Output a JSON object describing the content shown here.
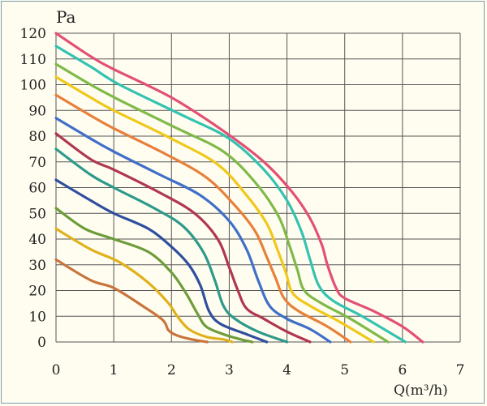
{
  "chart_data": {
    "type": "line",
    "ylabel": "Pa",
    "xlabel": "Q(m³/h)",
    "xlim": [
      0,
      7
    ],
    "ylim": [
      0,
      120
    ],
    "x_ticks": [
      "0",
      "1",
      "2",
      "3",
      "4",
      "5",
      "6",
      "7"
    ],
    "y_ticks": [
      "0",
      "10",
      "20",
      "30",
      "40",
      "50",
      "60",
      "70",
      "80",
      "90",
      "100",
      "110",
      "120"
    ],
    "grid": true,
    "series": [
      {
        "color": "#c8743a",
        "points": [
          [
            0,
            32
          ],
          [
            0.6,
            24
          ],
          [
            1.0,
            21
          ],
          [
            1.5,
            14
          ],
          [
            1.85,
            8.5
          ],
          [
            1.95,
            4.5
          ],
          [
            2.1,
            2.5
          ],
          [
            2.35,
            1
          ],
          [
            2.62,
            0
          ]
        ]
      },
      {
        "color": "#e0b11c",
        "points": [
          [
            0,
            44
          ],
          [
            0.6,
            36
          ],
          [
            1.1,
            31
          ],
          [
            1.6,
            23
          ],
          [
            1.95,
            15
          ],
          [
            2.1,
            10
          ],
          [
            2.3,
            5
          ],
          [
            2.6,
            2
          ],
          [
            2.9,
            1
          ],
          [
            3.05,
            0
          ]
        ]
      },
      {
        "color": "#6e9c3a",
        "points": [
          [
            0,
            52
          ],
          [
            0.5,
            44
          ],
          [
            1.0,
            40
          ],
          [
            1.6,
            35
          ],
          [
            2.0,
            27
          ],
          [
            2.25,
            19
          ],
          [
            2.45,
            11
          ],
          [
            2.6,
            6
          ],
          [
            2.9,
            3
          ],
          [
            3.2,
            1
          ],
          [
            3.4,
            0
          ]
        ]
      },
      {
        "color": "#2f4f9e",
        "points": [
          [
            0,
            63
          ],
          [
            0.6,
            55
          ],
          [
            1.0,
            50
          ],
          [
            1.6,
            44
          ],
          [
            2.0,
            37
          ],
          [
            2.3,
            30
          ],
          [
            2.5,
            22
          ],
          [
            2.65,
            12
          ],
          [
            2.85,
            7
          ],
          [
            3.3,
            3
          ],
          [
            3.65,
            0
          ]
        ]
      },
      {
        "color": "#2e9a8a",
        "points": [
          [
            0,
            75
          ],
          [
            0.6,
            65
          ],
          [
            1.0,
            60
          ],
          [
            1.7,
            52
          ],
          [
            2.2,
            45
          ],
          [
            2.55,
            35
          ],
          [
            2.75,
            24
          ],
          [
            2.9,
            14
          ],
          [
            3.1,
            9
          ],
          [
            3.5,
            4
          ],
          [
            4.0,
            0
          ]
        ]
      },
      {
        "color": "#b0374f",
        "points": [
          [
            0,
            81
          ],
          [
            0.6,
            71
          ],
          [
            1.0,
            67
          ],
          [
            1.8,
            58
          ],
          [
            2.4,
            50
          ],
          [
            2.8,
            40
          ],
          [
            3.0,
            29
          ],
          [
            3.15,
            20
          ],
          [
            3.3,
            13
          ],
          [
            3.6,
            9
          ],
          [
            4.0,
            4
          ],
          [
            4.4,
            0
          ]
        ]
      },
      {
        "color": "#3f6fc8",
        "points": [
          [
            0,
            87
          ],
          [
            0.6,
            79
          ],
          [
            1.0,
            74
          ],
          [
            1.8,
            65
          ],
          [
            2.5,
            57
          ],
          [
            3.0,
            47
          ],
          [
            3.3,
            36
          ],
          [
            3.5,
            24
          ],
          [
            3.7,
            14
          ],
          [
            4.0,
            9
          ],
          [
            4.4,
            5
          ],
          [
            4.75,
            0
          ]
        ]
      },
      {
        "color": "#e7803a",
        "points": [
          [
            0,
            96
          ],
          [
            0.6,
            88
          ],
          [
            1.0,
            83
          ],
          [
            1.9,
            73
          ],
          [
            2.6,
            64
          ],
          [
            3.1,
            53
          ],
          [
            3.45,
            43
          ],
          [
            3.65,
            33
          ],
          [
            3.8,
            25
          ],
          [
            3.95,
            17
          ],
          [
            4.2,
            12
          ],
          [
            4.7,
            6
          ],
          [
            5.1,
            0
          ]
        ]
      },
      {
        "color": "#f0c81a",
        "points": [
          [
            0,
            103
          ],
          [
            0.6,
            95
          ],
          [
            1.0,
            90
          ],
          [
            2.0,
            79
          ],
          [
            2.8,
            69
          ],
          [
            3.3,
            57
          ],
          [
            3.65,
            46
          ],
          [
            3.85,
            35
          ],
          [
            3.98,
            27
          ],
          [
            4.1,
            19
          ],
          [
            4.4,
            14
          ],
          [
            4.9,
            8
          ],
          [
            5.5,
            0
          ]
        ]
      },
      {
        "color": "#7fba48",
        "points": [
          [
            0,
            108
          ],
          [
            0.6,
            100
          ],
          [
            1.1,
            94
          ],
          [
            2.1,
            83
          ],
          [
            2.9,
            74
          ],
          [
            3.45,
            62
          ],
          [
            3.85,
            49
          ],
          [
            4.05,
            37
          ],
          [
            4.18,
            28
          ],
          [
            4.3,
            20
          ],
          [
            4.6,
            15
          ],
          [
            5.1,
            9
          ],
          [
            5.75,
            0
          ]
        ]
      },
      {
        "color": "#34c2b1",
        "points": [
          [
            0,
            115
          ],
          [
            0.6,
            107
          ],
          [
            1.1,
            100
          ],
          [
            2.2,
            88
          ],
          [
            3.0,
            79
          ],
          [
            3.6,
            67
          ],
          [
            4.0,
            55
          ],
          [
            4.25,
            43
          ],
          [
            4.4,
            32
          ],
          [
            4.55,
            22
          ],
          [
            4.8,
            16
          ],
          [
            5.3,
            10
          ],
          [
            6.05,
            0
          ]
        ]
      },
      {
        "color": "#e25075",
        "points": [
          [
            0,
            120
          ],
          [
            0.6,
            111
          ],
          [
            1.0,
            106
          ],
          [
            2.0,
            95
          ],
          [
            2.9,
            82
          ],
          [
            3.6,
            70
          ],
          [
            4.1,
            58
          ],
          [
            4.4,
            48
          ],
          [
            4.6,
            38
          ],
          [
            4.7,
            30
          ],
          [
            4.85,
            21
          ],
          [
            5.0,
            17
          ],
          [
            5.5,
            12
          ],
          [
            6.0,
            6
          ],
          [
            6.35,
            0
          ]
        ]
      }
    ]
  }
}
